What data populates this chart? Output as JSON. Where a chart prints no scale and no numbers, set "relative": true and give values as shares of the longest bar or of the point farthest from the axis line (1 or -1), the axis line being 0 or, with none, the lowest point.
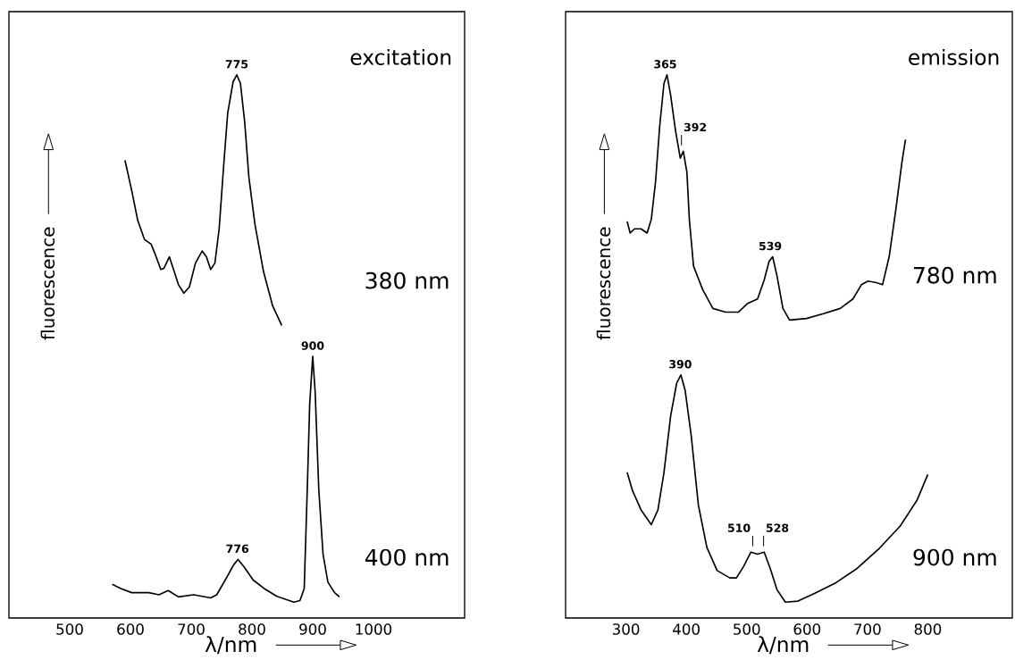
{
  "chart_data": [
    {
      "type": "line",
      "title": "excitation",
      "xlabel": "λ/nm",
      "ylabel": "fluorescence",
      "relative": true,
      "tick_labels": "x",
      "legend": false,
      "marker": "none",
      "line_style": "solid",
      "xlim": [
        400,
        1150
      ],
      "xticks": [
        500,
        600,
        700,
        800,
        900,
        1000
      ],
      "series": [
        {
          "name": "380 nm",
          "color": "#000000",
          "x": [
            591,
            602,
            612,
            623,
            634,
            641,
            650,
            655,
            664,
            672,
            679,
            688,
            697,
            707,
            718,
            725,
            732,
            739,
            746,
            753,
            760,
            769,
            775,
            781,
            788,
            795,
            805,
            819,
            834,
            849
          ],
          "values": [
            0.838,
            0.781,
            0.724,
            0.688,
            0.679,
            0.659,
            0.631,
            0.633,
            0.655,
            0.627,
            0.602,
            0.586,
            0.598,
            0.643,
            0.666,
            0.655,
            0.631,
            0.643,
            0.708,
            0.821,
            0.927,
            0.987,
            1.0,
            0.984,
            0.911,
            0.805,
            0.716,
            0.627,
            0.562,
            0.525
          ]
        },
        {
          "name": "400 nm",
          "color": "#000000",
          "x": [
            570,
            584,
            602,
            630,
            647,
            662,
            679,
            704,
            732,
            742,
            756,
            770,
            777,
            787,
            802,
            820,
            841,
            869,
            879,
            886,
            891,
            895,
            900,
            904,
            910,
            917,
            925,
            936,
            944
          ],
          "values": [
            0.034,
            0.026,
            0.018,
            0.018,
            0.014,
            0.022,
            0.01,
            0.014,
            0.008,
            0.014,
            0.042,
            0.071,
            0.081,
            0.067,
            0.042,
            0.026,
            0.011,
            0.0,
            0.003,
            0.026,
            0.213,
            0.375,
            0.466,
            0.399,
            0.213,
            0.091,
            0.038,
            0.018,
            0.01
          ]
        }
      ],
      "annotations": [
        {
          "text": "775",
          "x": 775,
          "y": 1.0
        },
        {
          "text": "776",
          "x": 776,
          "y": 0.081
        },
        {
          "text": "900",
          "x": 900,
          "y": 0.466
        }
      ]
    },
    {
      "type": "line",
      "title": "emission",
      "xlabel": "λ/nm",
      "ylabel": "fluorescence",
      "relative": true,
      "tick_labels": "x",
      "legend": false,
      "marker": "none",
      "line_style": "solid",
      "xlim": [
        200,
        940
      ],
      "xticks": [
        300,
        400,
        500,
        600,
        700,
        800
      ],
      "series": [
        {
          "name": "780 nm",
          "color": "#000000",
          "x": [
            302,
            307,
            314,
            325,
            335,
            342,
            349,
            356,
            363,
            368,
            374,
            382,
            390,
            395,
            401,
            405,
            412,
            427,
            444,
            465,
            486,
            501,
            518,
            529,
            537,
            543,
            550,
            560,
            571,
            599,
            627,
            655,
            676,
            690,
            701,
            715,
            725,
            736,
            747,
            757,
            763
          ],
          "values": [
            0.722,
            0.7,
            0.708,
            0.708,
            0.7,
            0.726,
            0.797,
            0.904,
            0.984,
            1.0,
            0.962,
            0.895,
            0.842,
            0.855,
            0.815,
            0.726,
            0.637,
            0.593,
            0.557,
            0.55,
            0.55,
            0.566,
            0.575,
            0.611,
            0.646,
            0.655,
            0.62,
            0.557,
            0.535,
            0.538,
            0.547,
            0.557,
            0.575,
            0.602,
            0.609,
            0.606,
            0.602,
            0.655,
            0.744,
            0.833,
            0.877
          ]
        },
        {
          "name": "900 nm",
          "color": "#000000",
          "x": [
            302,
            311,
            325,
            342,
            353,
            363,
            374,
            384,
            391,
            398,
            408,
            420,
            434,
            451,
            472,
            483,
            495,
            507,
            518,
            529,
            539,
            550,
            564,
            585,
            613,
            648,
            683,
            718,
            754,
            782,
            800
          ],
          "values": [
            0.246,
            0.211,
            0.175,
            0.147,
            0.175,
            0.246,
            0.353,
            0.415,
            0.431,
            0.402,
            0.317,
            0.184,
            0.104,
            0.06,
            0.046,
            0.046,
            0.068,
            0.095,
            0.091,
            0.095,
            0.064,
            0.024,
            0.0,
            0.002,
            0.017,
            0.037,
            0.064,
            0.1,
            0.144,
            0.193,
            0.242
          ]
        }
      ],
      "annotations": [
        {
          "text": "365",
          "x": 365,
          "y": 1.0
        },
        {
          "text": "392",
          "x": 392,
          "y": 0.855
        },
        {
          "text": "539",
          "x": 539,
          "y": 0.655
        },
        {
          "text": "390",
          "x": 390,
          "y": 0.431
        },
        {
          "text": "510",
          "x": 510,
          "y": 0.095
        },
        {
          "text": "528",
          "x": 528,
          "y": 0.095
        }
      ]
    }
  ]
}
